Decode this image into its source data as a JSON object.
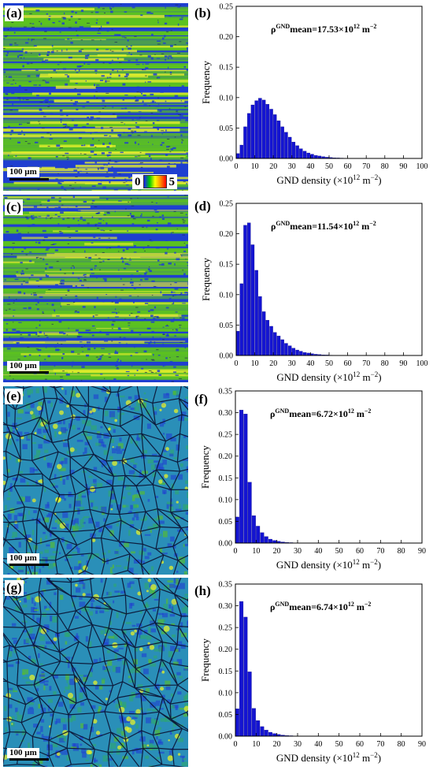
{
  "panels": [
    {
      "map_label": "(a)",
      "chart_label": "(b)",
      "scale": "100 µm",
      "colorbar": {
        "min": "0",
        "max": "5"
      },
      "annotation": {
        "base": "ρ",
        "sup": "GND",
        "rest": "mean=17.53×10",
        "sup2": "12",
        "unit": " m",
        "sup3": "−2"
      }
    },
    {
      "map_label": "(c)",
      "chart_label": "(d)",
      "scale": "100 µm",
      "annotation": {
        "base": "ρ",
        "sup": "GND",
        "rest": "mean=11.54×10",
        "sup2": "12",
        "unit": " m",
        "sup3": "−2"
      }
    },
    {
      "map_label": "(e)",
      "chart_label": "(f)",
      "scale": "100 µm",
      "annotation": {
        "base": "ρ",
        "sup": "GND",
        "rest": "mean=6.72×10",
        "sup2": "12",
        "unit": " m",
        "sup3": "−2"
      }
    },
    {
      "map_label": "(g)",
      "chart_label": "(h)",
      "scale": "100 µm",
      "annotation": {
        "base": "ρ",
        "sup": "GND",
        "rest": "mean=6.74×10",
        "sup2": "12",
        "unit": " m",
        "sup3": "−2"
      }
    }
  ],
  "colors": {
    "bar": "#1414d2",
    "map_blue": "#1f3fd0",
    "map_green": "#5cc21f",
    "map_yellow": "#e6f02a",
    "grain_boundary": "#0a1030"
  },
  "chart_data": [
    {
      "type": "bar",
      "ylabel": "Frequency",
      "xlabel": {
        "main": "GND density (×10",
        "sup": "12",
        "unit": " m",
        "sup2": "−2",
        ")": ")"
      },
      "xlim": [
        0,
        100
      ],
      "ylim": [
        0,
        0.25
      ],
      "bin_width": 2,
      "xticks": [
        0,
        10,
        20,
        30,
        40,
        50,
        60,
        70,
        80,
        90,
        100
      ],
      "yticks": [
        "0.00",
        "0.05",
        "0.10",
        "0.15",
        "0.20",
        "0.25"
      ],
      "x": [
        1,
        3,
        5,
        7,
        9,
        11,
        13,
        15,
        17,
        19,
        21,
        23,
        25,
        27,
        29,
        31,
        33,
        35,
        37,
        39,
        41,
        43,
        45,
        47,
        49,
        51,
        53,
        55,
        57,
        59,
        61,
        63,
        65
      ],
      "values": [
        0.008,
        0.022,
        0.052,
        0.074,
        0.088,
        0.095,
        0.099,
        0.096,
        0.089,
        0.081,
        0.072,
        0.062,
        0.052,
        0.043,
        0.035,
        0.027,
        0.021,
        0.016,
        0.012,
        0.009,
        0.007,
        0.005,
        0.004,
        0.003,
        0.002,
        0.0015,
        0.001,
        0.0008,
        0.0006,
        0.0004,
        0.0003,
        0.0002,
        0.0001
      ]
    },
    {
      "type": "bar",
      "ylabel": "Frequency",
      "xlabel": {
        "main": "GND density (×10",
        "sup": "12",
        "unit": " m",
        "sup2": "−2",
        ")": ")"
      },
      "xlim": [
        0,
        100
      ],
      "ylim": [
        0,
        0.25
      ],
      "bin_width": 2,
      "xticks": [
        0,
        10,
        20,
        30,
        40,
        50,
        60,
        70,
        80,
        90,
        100
      ],
      "yticks": [
        "0.00",
        "0.05",
        "0.10",
        "0.15",
        "0.20",
        "0.25"
      ],
      "x": [
        1,
        3,
        5,
        7,
        9,
        11,
        13,
        15,
        17,
        19,
        21,
        23,
        25,
        27,
        29,
        31,
        33,
        35,
        37,
        39,
        41,
        43,
        45,
        47,
        49,
        51,
        53,
        55
      ],
      "values": [
        0.04,
        0.118,
        0.214,
        0.218,
        0.182,
        0.14,
        0.097,
        0.072,
        0.058,
        0.048,
        0.038,
        0.032,
        0.026,
        0.02,
        0.016,
        0.012,
        0.009,
        0.007,
        0.005,
        0.004,
        0.003,
        0.002,
        0.0015,
        0.001,
        0.0008,
        0.0005,
        0.0003,
        0.0002
      ]
    },
    {
      "type": "bar",
      "ylabel": "Frequency",
      "xlabel": {
        "main": "GND density (×10",
        "sup": "12",
        "unit": " m",
        "sup2": "−2",
        ")": ")"
      },
      "xlim": [
        0,
        90
      ],
      "ylim": [
        0,
        0.35
      ],
      "bin_width": 2,
      "xticks": [
        0,
        10,
        20,
        30,
        40,
        50,
        60,
        70,
        80,
        90
      ],
      "yticks": [
        "0.00",
        "0.05",
        "0.10",
        "0.15",
        "0.20",
        "0.25",
        "0.30",
        "0.35"
      ],
      "x": [
        1,
        3,
        5,
        7,
        9,
        11,
        13,
        15,
        17,
        19,
        21,
        23,
        25,
        27,
        29
      ],
      "values": [
        0.06,
        0.306,
        0.297,
        0.14,
        0.063,
        0.039,
        0.024,
        0.015,
        0.009,
        0.006,
        0.004,
        0.0025,
        0.0015,
        0.001,
        0.0005
      ]
    },
    {
      "type": "bar",
      "ylabel": "Frequency",
      "xlabel": {
        "main": "GND density (×10",
        "sup": "12",
        "unit": " m",
        "sup2": "−2",
        ")": ")"
      },
      "xlim": [
        0,
        90
      ],
      "ylim": [
        0,
        0.35
      ],
      "bin_width": 2,
      "xticks": [
        0,
        10,
        20,
        30,
        40,
        50,
        60,
        70,
        80,
        90
      ],
      "yticks": [
        "0.00",
        "0.05",
        "0.10",
        "0.15",
        "0.20",
        "0.25",
        "0.30",
        "0.35"
      ],
      "x": [
        1,
        3,
        5,
        7,
        9,
        11,
        13,
        15,
        17,
        19,
        21,
        23,
        25,
        27,
        29
      ],
      "values": [
        0.063,
        0.31,
        0.274,
        0.148,
        0.064,
        0.036,
        0.022,
        0.014,
        0.009,
        0.006,
        0.004,
        0.0025,
        0.0015,
        0.001,
        0.0005
      ]
    }
  ]
}
